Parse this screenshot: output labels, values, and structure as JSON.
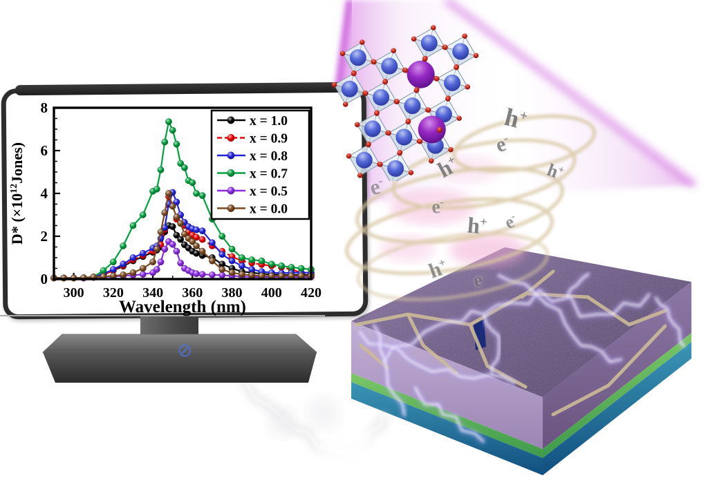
{
  "figure": {
    "kind": "graphical-abstract",
    "monitor_label": "",
    "accent_colors": {
      "beam_magenta": "#cf5fdf",
      "ring_tan": "#d9c8a4",
      "device_top_purple": "#7d6a96",
      "device_front_purple": "#b4a0c6",
      "device_green_layer": "#55a84f",
      "device_blue_layer": "#1f6e9c",
      "crystal_sphere_blue": "#4a5cd0",
      "crystal_sphere_purple": "#8a1fb8",
      "crystal_oxygen_red": "#c0271a",
      "lightning_white": "#ffffff"
    }
  },
  "icons": {
    "prohibition": "⊘"
  },
  "chart_data": {
    "type": "line",
    "title": "",
    "xlabel": "Wavelength (nm)",
    "ylabel": "D* (×10¹²Jones)",
    "ylabel_parts": {
      "pre": "D* (×10",
      "sup": "12",
      "post": "Jones)"
    },
    "xlim": [
      290,
      420
    ],
    "ylim": [
      0,
      8
    ],
    "xticks": [
      300,
      320,
      340,
      360,
      380,
      400,
      420
    ],
    "yticks": [
      0,
      2,
      4,
      6,
      8
    ],
    "x_minor_step": 10,
    "y_minor_step": 0.5,
    "grid": false,
    "legend_position": "top-right",
    "x": [
      290,
      295,
      300,
      305,
      310,
      315,
      320,
      325,
      330,
      335,
      340,
      342,
      344,
      346,
      348,
      350,
      352,
      354,
      356,
      358,
      360,
      362,
      365,
      370,
      375,
      380,
      385,
      390,
      395,
      400,
      405,
      410,
      415,
      420
    ],
    "series": [
      {
        "name": "x = 1.0",
        "color": "#000000",
        "dash": false,
        "values": [
          0.05,
          0.05,
          0.05,
          0.05,
          0.08,
          0.2,
          0.4,
          0.6,
          0.85,
          1.05,
          1.25,
          1.35,
          1.5,
          2.2,
          2.5,
          2.45,
          2.05,
          1.85,
          1.6,
          1.45,
          1.3,
          1.2,
          1.1,
          1.0,
          0.7,
          0.5,
          0.35,
          0.3,
          0.25,
          0.22,
          0.2,
          0.2,
          0.2,
          0.2
        ]
      },
      {
        "name": "x = 0.9",
        "color": "#ee0000",
        "dash": true,
        "values": [
          0.05,
          0.05,
          0.05,
          0.05,
          0.08,
          0.2,
          0.4,
          0.62,
          0.9,
          1.1,
          1.3,
          1.4,
          1.6,
          2.3,
          3.85,
          3.45,
          2.8,
          2.6,
          2.5,
          2.2,
          2.05,
          1.95,
          1.85,
          1.55,
          1.3,
          1.05,
          0.85,
          0.75,
          0.68,
          0.62,
          0.55,
          0.45,
          0.3,
          0.25
        ]
      },
      {
        "name": "x = 0.8",
        "color": "#2222dd",
        "dash": false,
        "values": [
          0.05,
          0.05,
          0.05,
          0.06,
          0.1,
          0.25,
          0.45,
          0.7,
          1.0,
          1.2,
          1.45,
          1.55,
          1.9,
          2.4,
          3.5,
          4.05,
          3.6,
          3.0,
          2.65,
          2.45,
          2.35,
          2.3,
          2.25,
          1.7,
          1.15,
          0.85,
          0.62,
          0.45,
          0.35,
          0.3,
          0.28,
          0.3,
          0.3,
          0.3
        ]
      },
      {
        "name": "x = 0.7",
        "color": "#00a13e",
        "dash": false,
        "values": [
          0.05,
          0.05,
          0.05,
          0.05,
          0.1,
          0.4,
          0.8,
          1.55,
          2.5,
          3.0,
          4.1,
          4.2,
          5.1,
          6.4,
          7.35,
          6.95,
          6.3,
          5.4,
          5.2,
          4.6,
          4.5,
          4.0,
          3.9,
          2.8,
          2.0,
          1.4,
          1.0,
          0.9,
          0.85,
          0.7,
          0.62,
          0.55,
          0.5,
          0.45
        ]
      },
      {
        "name": "x = 0.5",
        "color": "#8a2be2",
        "dash": false,
        "values": [
          0.05,
          0.05,
          0.05,
          0.05,
          0.08,
          0.1,
          0.12,
          0.15,
          0.18,
          0.22,
          0.3,
          0.45,
          0.8,
          1.4,
          1.75,
          1.62,
          1.3,
          0.75,
          0.5,
          0.4,
          0.3,
          0.25,
          0.22,
          0.2,
          0.18,
          0.15,
          0.12,
          0.1,
          0.1,
          0.1,
          0.1,
          0.1,
          0.1,
          0.1
        ]
      },
      {
        "name": "x = 0.0",
        "color": "#7b4a21",
        "dash": false,
        "values": [
          0.05,
          0.05,
          0.05,
          0.07,
          0.1,
          0.12,
          0.15,
          0.2,
          0.3,
          0.5,
          0.8,
          1.4,
          2.2,
          3.1,
          4.0,
          3.4,
          2.9,
          2.6,
          2.1,
          1.9,
          1.75,
          1.55,
          1.3,
          0.85,
          0.45,
          0.3,
          0.22,
          0.18,
          0.15,
          0.15,
          0.15,
          0.15,
          0.15,
          0.15
        ]
      }
    ]
  },
  "spiral_labels": [
    {
      "base": "h",
      "sup": "+"
    },
    {
      "base": "e",
      "sup": "-"
    },
    {
      "base": "h",
      "sup": "+"
    },
    {
      "base": "h",
      "sup": "+"
    },
    {
      "base": "e",
      "sup": "-"
    },
    {
      "base": "e",
      "sup": "-"
    },
    {
      "base": "h",
      "sup": "+"
    },
    {
      "base": "e",
      "sup": "-"
    },
    {
      "base": "h",
      "sup": "+"
    },
    {
      "base": "e",
      "sup": "-"
    }
  ]
}
